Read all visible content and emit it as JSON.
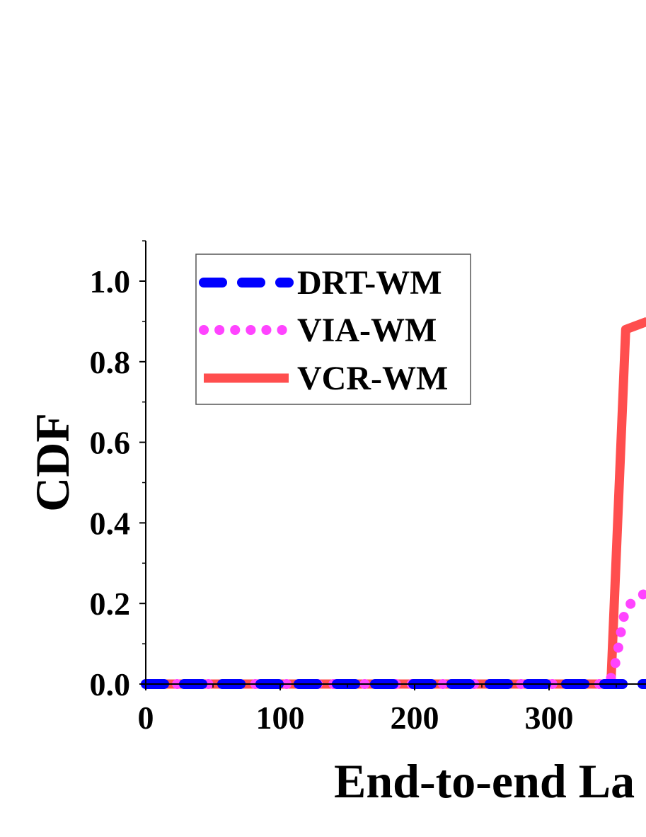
{
  "chart_data": {
    "type": "line",
    "xlabel": "End-to-end La",
    "ylabel": "CDF",
    "xlim": [
      0,
      373
    ],
    "ylim": [
      0,
      1.1
    ],
    "x_ticks": [
      "0",
      "100",
      "200",
      "300"
    ],
    "y_ticks": [
      "0.0",
      "0.2",
      "0.4",
      "0.6",
      "0.8",
      "1.0"
    ],
    "grid": false,
    "legend_position": "top-left",
    "series": [
      {
        "name": "DRT-WM",
        "color": "#0000ff",
        "style": "dashed",
        "points": [
          [
            0,
            0
          ],
          [
            350,
            0
          ],
          [
            373,
            0
          ]
        ]
      },
      {
        "name": "VIA-WM",
        "color": "#ff44ff",
        "style": "dotted",
        "points": [
          [
            0,
            0
          ],
          [
            344,
            0
          ],
          [
            348,
            0.03
          ],
          [
            351,
            0.08
          ],
          [
            354,
            0.14
          ],
          [
            357,
            0.19
          ],
          [
            373,
            0.23
          ]
        ]
      },
      {
        "name": "VCR-WM",
        "color": "#ff4e4e",
        "style": "solid",
        "points": [
          [
            0,
            0
          ],
          [
            346,
            0
          ],
          [
            357,
            0.88
          ],
          [
            373,
            0.9
          ]
        ]
      }
    ]
  }
}
